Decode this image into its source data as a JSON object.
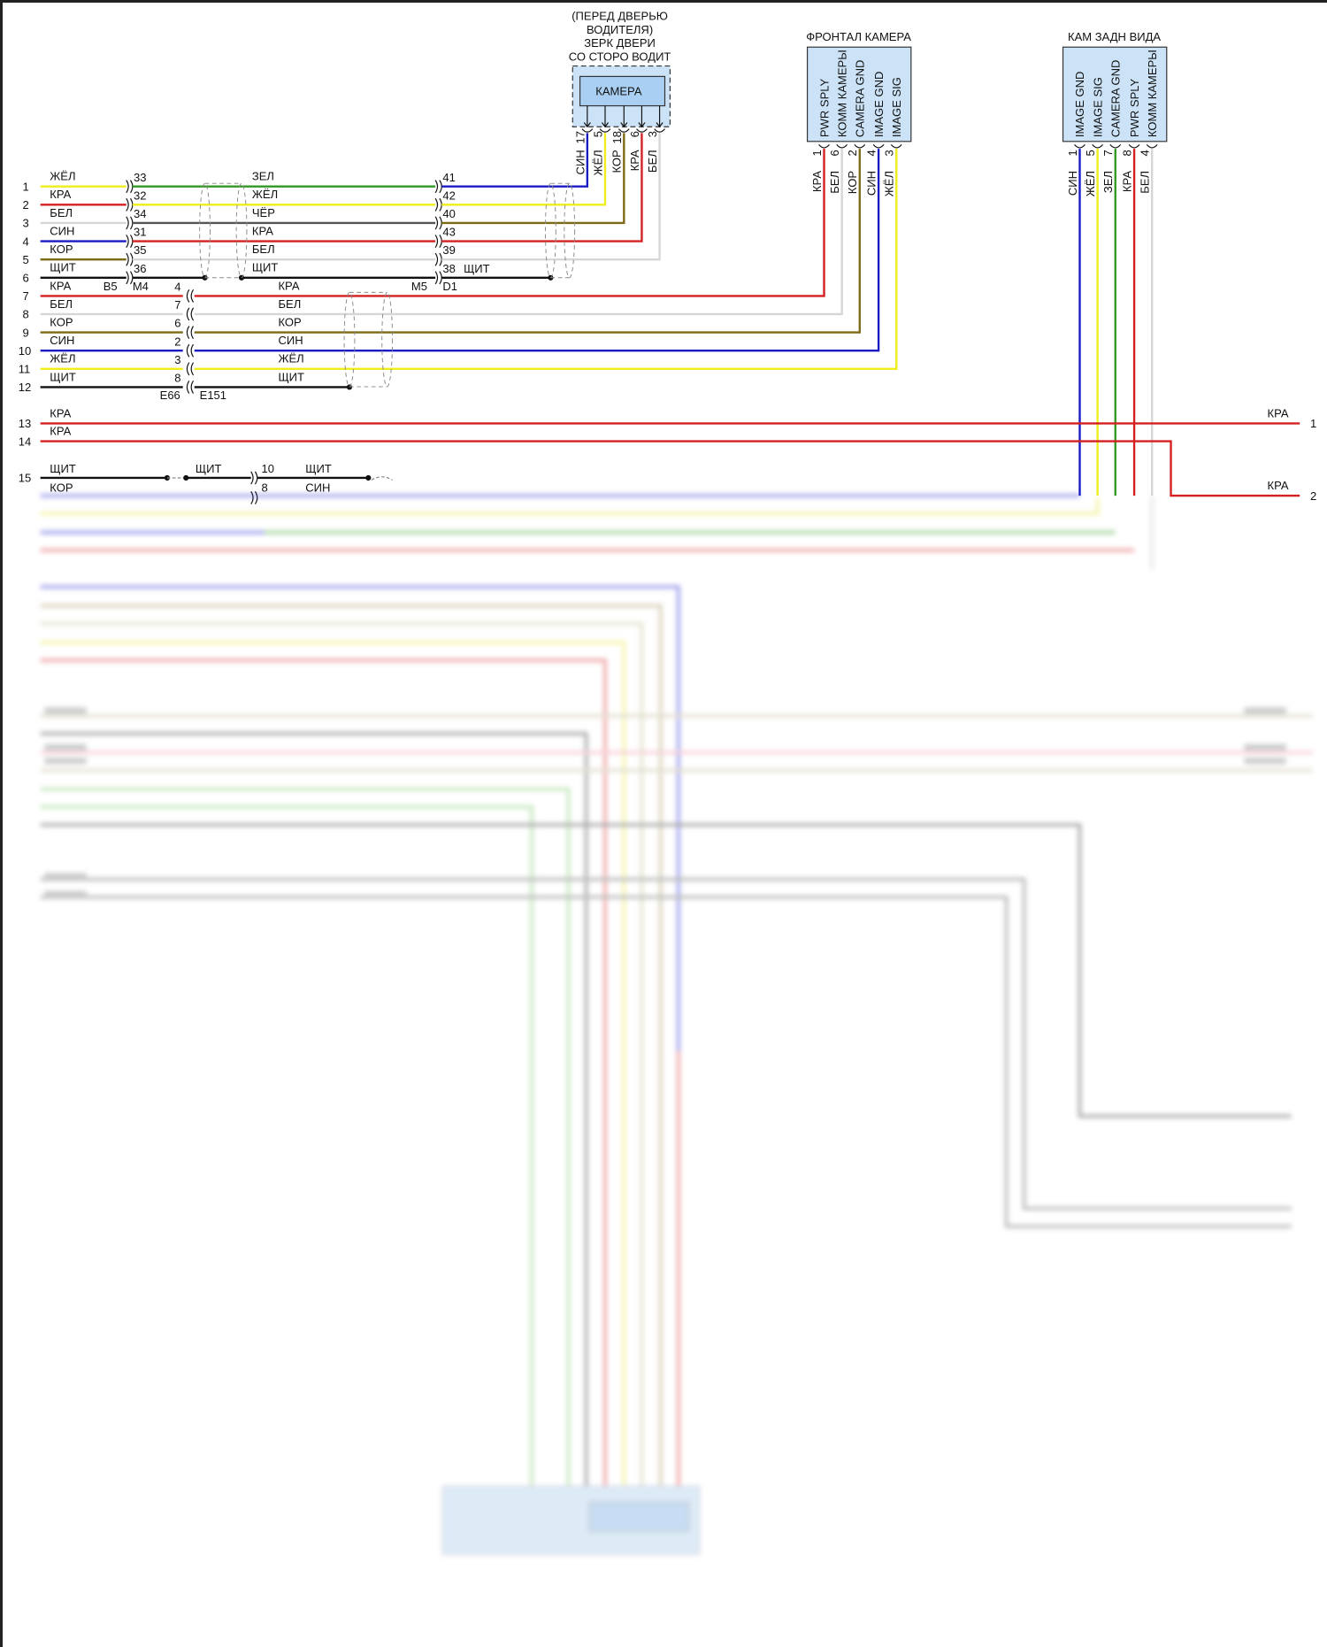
{
  "wire_colors": {
    "ЖЁЛ": "#efee1a",
    "КРА": "#d42020",
    "БЕЛ": "#d6d6d6",
    "СИН": "#1a1ac4",
    "КОР": "#7d6a14",
    "ЩИТ": "#111111",
    "ЗЕЛ": "#2f9a23",
    "ЧЁР": "#555555"
  },
  "door_camera": {
    "title_lines": [
      "(ПЕРЕД ДВЕРЬЮ",
      "ВОДИТЕЛЯ)",
      "ЗЕРК ДВЕРИ",
      "СО СТОРО ВОДИТ"
    ],
    "label": "КАМЕРА",
    "box_color": "#cce3f7",
    "pins": [
      {
        "wire": "СИН",
        "pin": "17"
      },
      {
        "wire": "ЖЁЛ",
        "pin": "5"
      },
      {
        "wire": "КОР",
        "pin": "18"
      },
      {
        "wire": "КРА",
        "pin": "6"
      },
      {
        "wire": "БЕЛ",
        "pin": "3"
      }
    ]
  },
  "door_harness": {
    "connector_a_left": "B5",
    "connector_a_right": "M4",
    "connector_b_left": "M5",
    "connector_b_right": "D1",
    "shield_right_label": "ЩИТ",
    "rows": [
      {
        "num": "1",
        "left": "ЖЁЛ",
        "pin_a": "33",
        "mid": "ЗЕЛ",
        "pin_b": "41",
        "right": "СИН"
      },
      {
        "num": "2",
        "left": "КРА",
        "pin_a": "32",
        "mid": "ЖЁЛ",
        "pin_b": "42",
        "right": "ЖЁЛ"
      },
      {
        "num": "3",
        "left": "БЕЛ",
        "pin_a": "34",
        "mid": "ЧЁР",
        "pin_b": "40",
        "right": "КОР"
      },
      {
        "num": "4",
        "left": "СИН",
        "pin_a": "31",
        "mid": "КРА",
        "pin_b": "43",
        "right": "КРА"
      },
      {
        "num": "5",
        "left": "КОР",
        "pin_a": "35",
        "mid": "БЕЛ",
        "pin_b": "39",
        "right": "БЕЛ"
      },
      {
        "num": "6",
        "left": "ЩИТ",
        "pin_a": "36",
        "mid": "ЩИТ",
        "pin_b": "38",
        "right": "ЩИТ"
      }
    ]
  },
  "front_camera": {
    "title": "ФРОНТАЛ КАМЕРА",
    "box_color": "#cce3f7",
    "pins": [
      {
        "function": "PWR SPLY",
        "wire": "КРА",
        "pin": "1"
      },
      {
        "function": "КОММ КАМЕРЫ",
        "wire": "БЕЛ",
        "pin": "6"
      },
      {
        "function": "CAMERA GND",
        "wire": "КОР",
        "pin": "2"
      },
      {
        "function": "IMAGE GND",
        "wire": "СИН",
        "pin": "4"
      },
      {
        "function": "IMAGE SIG",
        "wire": "ЖЁЛ",
        "pin": "3"
      }
    ]
  },
  "front_harness": {
    "connector_left": "E66",
    "connector_right": "E151",
    "rows": [
      {
        "num": "7",
        "left": "КРА",
        "pin": "4",
        "right": "КРА"
      },
      {
        "num": "8",
        "left": "БЕЛ",
        "pin": "7",
        "right": "БЕЛ"
      },
      {
        "num": "9",
        "left": "КОР",
        "pin": "6",
        "right": "КОР"
      },
      {
        "num": "10",
        "left": "СИН",
        "pin": "2",
        "right": "СИН"
      },
      {
        "num": "11",
        "left": "ЖЁЛ",
        "pin": "3",
        "right": "ЖЁЛ"
      },
      {
        "num": "12",
        "left": "ЩИТ",
        "pin": "8",
        "right": "ЩИТ"
      }
    ]
  },
  "rear_camera": {
    "title": "КАМ ЗАДН ВИДА",
    "box_color": "#cce3f7",
    "pins": [
      {
        "function": "IMAGE GND",
        "wire": "СИН",
        "pin": "1"
      },
      {
        "function": "IMAGE SIG",
        "wire": "ЖЁЛ",
        "pin": "5"
      },
      {
        "function": "CAMERA GND",
        "wire": "ЗЕЛ",
        "pin": "7"
      },
      {
        "function": "PWR SPLY",
        "wire": "КРА",
        "pin": "8"
      },
      {
        "function": "КОММ КАМЕРЫ",
        "wire": "БЕЛ",
        "pin": "4"
      }
    ]
  },
  "power_rows": [
    {
      "num": "13",
      "label": "КРА",
      "end_label": "КРА",
      "end_num": "1"
    },
    {
      "num": "14",
      "label": "КРА",
      "end_label": "КРА",
      "end_num": "2"
    }
  ],
  "row15": {
    "num": "15",
    "left": "ЩИТ",
    "mid": "ЩИТ",
    "pin": "10",
    "right": "ЩИТ"
  },
  "row16": {
    "left": "КОР",
    "pin": "8",
    "right": "СИН"
  }
}
